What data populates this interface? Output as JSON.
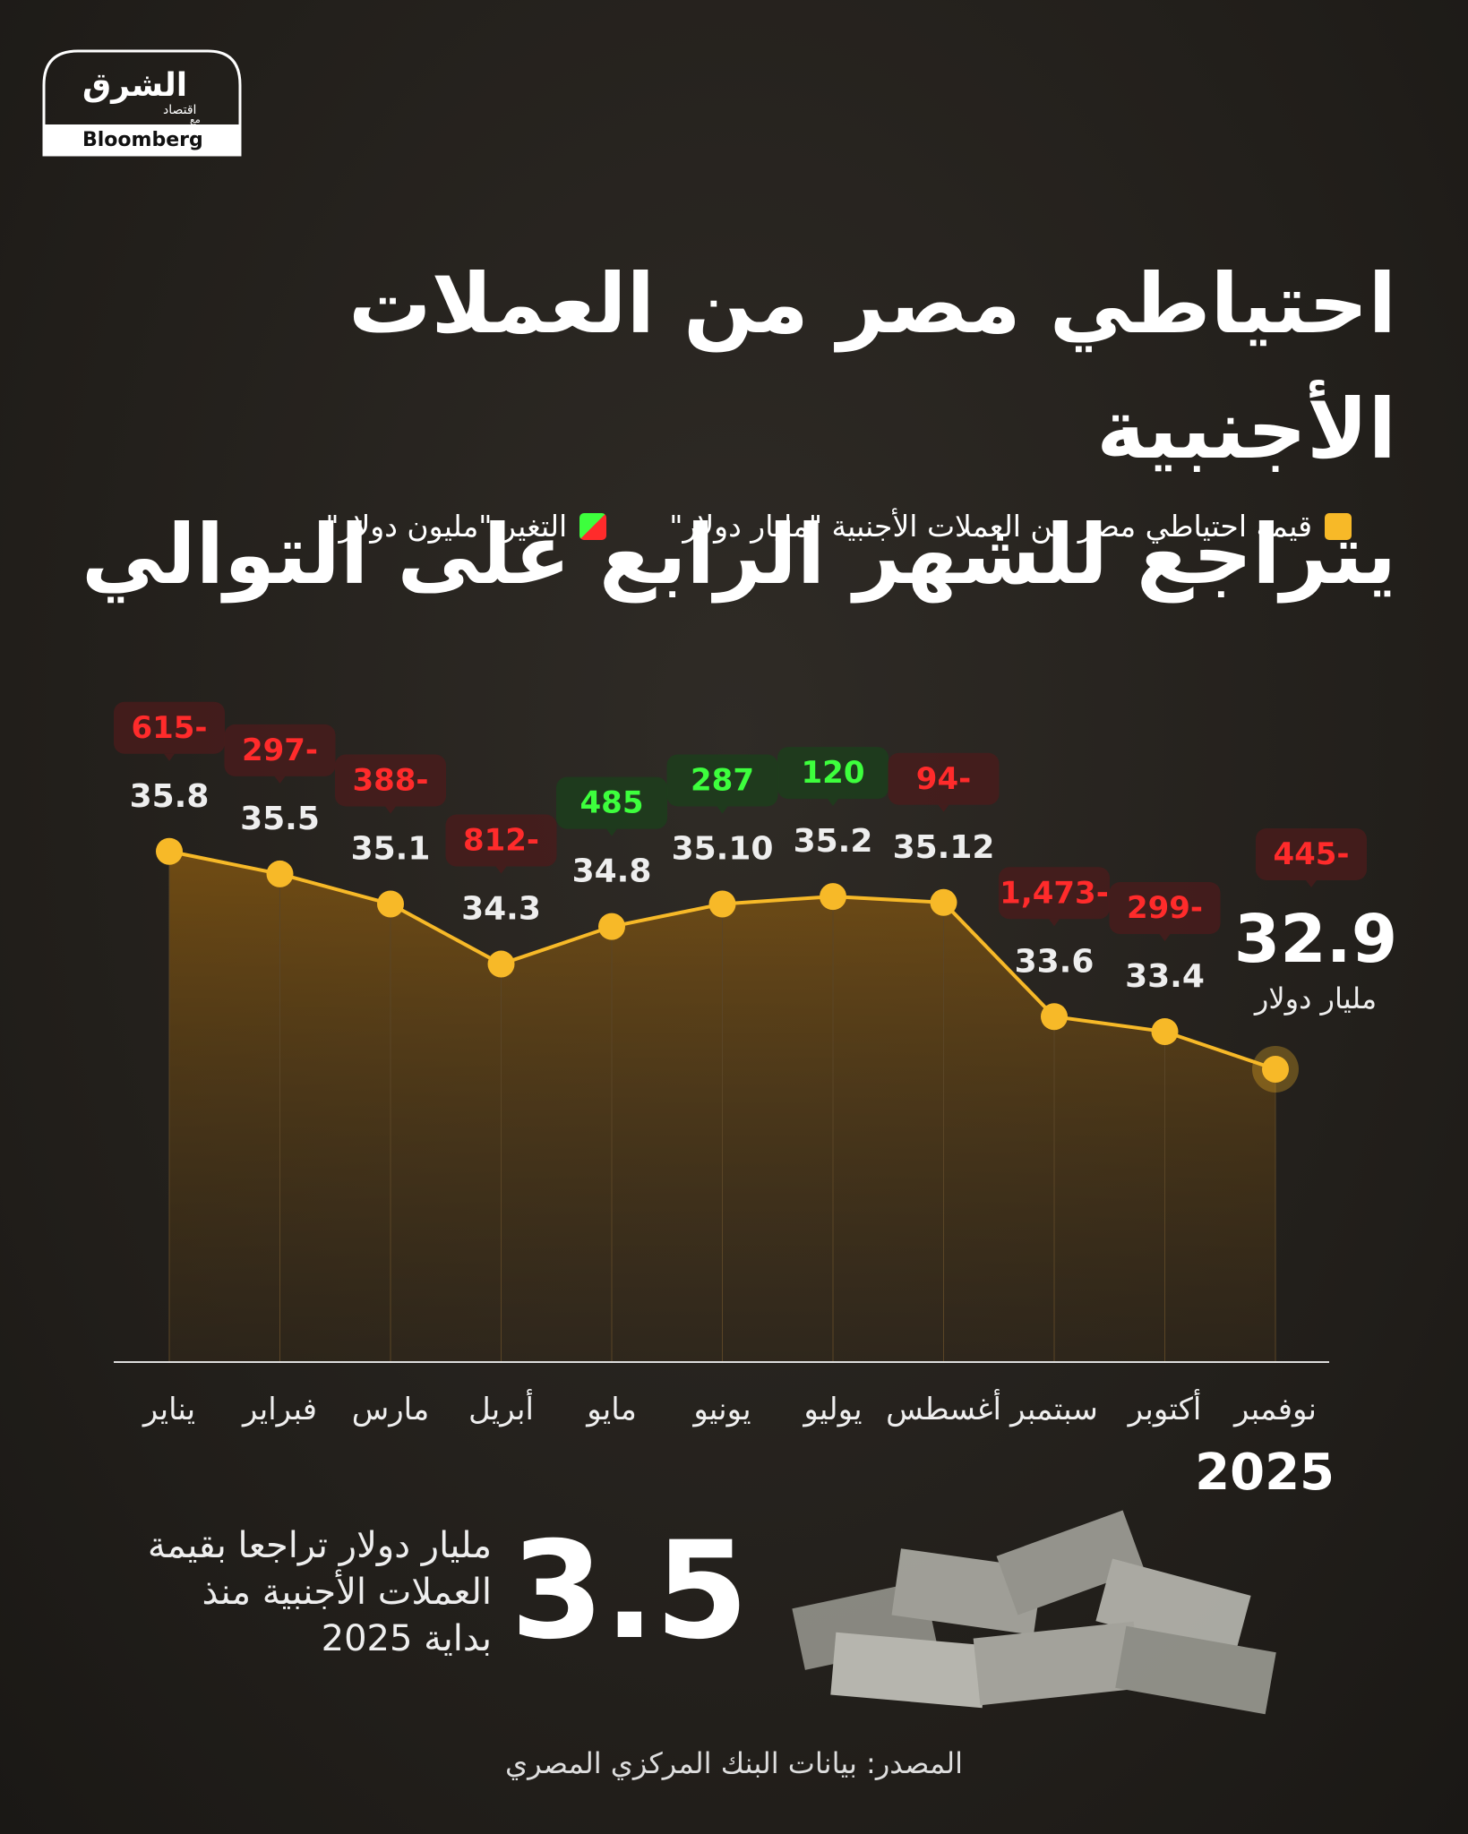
{
  "brand": {
    "name": "الشرق",
    "sub": "اقتصاد",
    "with": "مع",
    "partner": "Bloomberg"
  },
  "chart_data": {
    "type": "line",
    "title": [
      "احتياطي مصر من العملات الأجنبية",
      "يتراجع للشهر الرابع على التوالي"
    ],
    "categories": [
      "يناير",
      "فبراير",
      "مارس",
      "أبريل",
      "مايو",
      "يونيو",
      "يوليو",
      "أغسطس",
      "سبتمبر",
      "أكتوبر",
      "نوفمبر"
    ],
    "year": "2025",
    "ylim": [
      29,
      36
    ],
    "series": [
      {
        "name": "قيمة احتياطي مصر من العملات الأجنبية \"مليار دولار\"",
        "color": "#f7b928",
        "values": [
          35.8,
          35.5,
          35.1,
          34.3,
          34.8,
          35.1,
          35.2,
          35.12,
          33.6,
          33.4,
          32.9
        ],
        "value_labels": [
          "35.8",
          "35.5",
          "35.1",
          "34.3",
          "34.8",
          "35.10",
          "35.2",
          "35.12",
          "33.6",
          "33.4",
          "32.9"
        ]
      },
      {
        "name": "التغير \"مليون دولار\"",
        "colors": {
          "negative": "#ff2b2b",
          "positive": "#3dff3d"
        },
        "values": [
          -615,
          -297,
          -388,
          -812,
          485,
          287,
          120,
          -94,
          -1473,
          -299,
          -445
        ],
        "value_labels": [
          "615-",
          "297-",
          "388-",
          "812-",
          "485",
          "287",
          "120",
          "94-",
          "1,473-",
          "299-",
          "445-"
        ]
      }
    ],
    "last_unit": "مليار دولار"
  },
  "summary": {
    "value": "3.5",
    "lines": [
      "مليار دولار تراجعا بقيمة",
      "العملات الأجنبية منذ",
      "بداية 2025"
    ]
  },
  "source": "المصدر: بيانات البنك المركزي المصري"
}
